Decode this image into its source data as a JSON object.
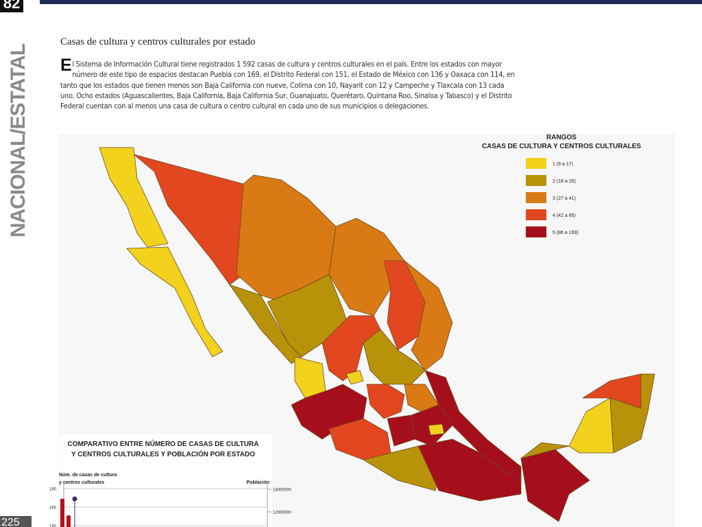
{
  "page_number_top": "82",
  "side_label": "NACIONAL/ESTATAL",
  "page_number_bottom": "225",
  "title": "Casas de cultura y centros culturales por estado",
  "paragraph": {
    "drop_cap": "E",
    "text": "l Sistema de Información Cultural tiene registrados 1 592 casas de cultura y centros culturales en el país. Entre los estados con mayor número de este tipo de espacios destacan Puebla con 169, el Distrito Federal con 151, el Estado de México con 136 y Oaxaca con 114, en tanto que los estados que tienen menos son Baja California con nueve, Colima con 10, Nayarit con 12 y Campeche y Tlaxcala con 13 cada uno. Ocho estados (Aguascalientes, Baja California, Baja California Sur, Guanajuato, Querétaro, Quintana Roo, Sinaloa y Tabasco) y el Distrito Federal cuentan con al menos una casa de cultura o centro cultural en cada uno de sus municipios o delegaciones."
  },
  "legend": {
    "title": "RANGOS",
    "subtitle": "CASAS DE CULTURA Y CENTROS CULTURALES",
    "items": [
      {
        "label": "1 (9 a 17)",
        "color": "#f2d21c"
      },
      {
        "label": "2 (18 a 26)",
        "color": "#b8930a"
      },
      {
        "label": "3 (27 a 41)",
        "color": "#d97a14"
      },
      {
        "label": "4 (42 a 85)",
        "color": "#e2471f"
      },
      {
        "label": "5 (86 a 169)",
        "color": "#a50f1c"
      }
    ]
  },
  "chart_data": {
    "type": "bar",
    "title": [
      "COMPARATIVO ENTRE NÚMERO DE CASAS DE CULTURA",
      "Y CENTROS CULTURALES Y POBLACIÓN POR ESTADO"
    ],
    "y_label": [
      "Núm. de casas de cultura",
      "y centros culturales"
    ],
    "y2_label": "Población",
    "ylim": [
      140,
      180
    ],
    "yticks": [
      140,
      160,
      180
    ],
    "y2lim": [
      12000000,
      14000000
    ],
    "y2ticks": [
      12000000,
      14000000
    ],
    "series": [
      {
        "color": "#b3121f",
        "values": [
          169,
          151
        ]
      },
      {
        "color": "#3b2a6b",
        "axis": "y2",
        "values": [
          13150000
        ]
      }
    ]
  }
}
